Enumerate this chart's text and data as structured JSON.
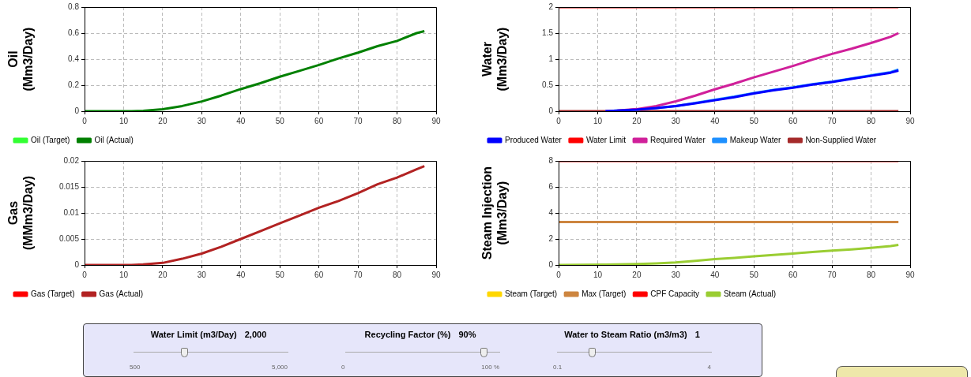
{
  "chart_data": [
    {
      "type": "line",
      "ylabel": "Oil (Mm3/Day)",
      "xlim": [
        0,
        90
      ],
      "xticks": [
        0,
        10,
        20,
        30,
        40,
        50,
        60,
        70,
        80,
        90
      ],
      "ylim": [
        0,
        0.8
      ],
      "yticks": [
        0,
        0.2,
        0.4,
        0.6,
        0.8
      ],
      "grid": true,
      "legend": "bottom",
      "marker": "none",
      "line_style": "solid",
      "series": [
        {
          "name": "Oil (Target)",
          "color": "#33ff33"
        },
        {
          "name": "Oil (Actual)",
          "color": "#008000",
          "x": [
            0,
            10,
            12,
            15,
            20,
            25,
            30,
            35,
            40,
            45,
            50,
            55,
            60,
            65,
            70,
            75,
            80,
            85,
            87
          ],
          "values": [
            0,
            0,
            0,
            0.003,
            0.015,
            0.04,
            0.075,
            0.12,
            0.17,
            0.215,
            0.265,
            0.31,
            0.355,
            0.405,
            0.45,
            0.5,
            0.54,
            0.6,
            0.615
          ]
        }
      ]
    },
    {
      "type": "line",
      "ylabel": "Water (Mm3/Day)",
      "xlim": [
        0,
        90
      ],
      "xticks": [
        0,
        10,
        20,
        30,
        40,
        50,
        60,
        70,
        80,
        90
      ],
      "ylim": [
        0,
        2
      ],
      "yticks": [
        0,
        0.5,
        1,
        1.5,
        2
      ],
      "grid": true,
      "legend": "bottom",
      "marker": "none",
      "line_style": "solid",
      "series": [
        {
          "name": "Produced Water",
          "color": "#0000ff",
          "x": [
            12,
            15,
            20,
            25,
            30,
            35,
            40,
            45,
            50,
            55,
            60,
            65,
            70,
            75,
            80,
            85,
            87
          ],
          "values": [
            0,
            0.01,
            0.03,
            0.06,
            0.1,
            0.15,
            0.21,
            0.27,
            0.34,
            0.4,
            0.45,
            0.51,
            0.56,
            0.62,
            0.68,
            0.74,
            0.78
          ]
        },
        {
          "name": "Water Limit",
          "color": "#ff0000",
          "x": [
            0,
            87
          ],
          "values": [
            2,
            2
          ]
        },
        {
          "name": "Required Water",
          "color": "#d0209a",
          "x": [
            12,
            15,
            20,
            25,
            30,
            35,
            40,
            45,
            50,
            55,
            60,
            65,
            70,
            75,
            80,
            85,
            87
          ],
          "values": [
            0,
            0.01,
            0.04,
            0.1,
            0.19,
            0.3,
            0.42,
            0.53,
            0.65,
            0.76,
            0.87,
            0.99,
            1.1,
            1.2,
            1.31,
            1.43,
            1.5
          ]
        },
        {
          "name": "Makeup Water",
          "color": "#1e90ff",
          "x": [
            12,
            15,
            20,
            25,
            30,
            35,
            40,
            45,
            50,
            55,
            60,
            65,
            70,
            75,
            80,
            85,
            87
          ],
          "values": [
            0,
            0.01,
            0.03,
            0.06,
            0.1,
            0.16,
            0.22,
            0.28,
            0.35,
            0.41,
            0.46,
            0.52,
            0.57,
            0.63,
            0.69,
            0.75,
            0.8
          ]
        },
        {
          "name": "Non-Supplied Water",
          "color": "#a52a2a",
          "x": [
            0,
            87
          ],
          "values": [
            0,
            0
          ]
        }
      ]
    },
    {
      "type": "line",
      "ylabel": "Gas (MMm3/Day)",
      "xlim": [
        0,
        90
      ],
      "xticks": [
        0,
        10,
        20,
        30,
        40,
        50,
        60,
        70,
        80,
        90
      ],
      "ylim": [
        0,
        0.02
      ],
      "yticks": [
        0,
        0.005,
        0.01,
        0.015,
        0.02
      ],
      "grid": true,
      "legend": "bottom",
      "marker": "none",
      "line_style": "solid",
      "series": [
        {
          "name": "Gas (Target)",
          "color": "#ff0000"
        },
        {
          "name": "Gas (Actual)",
          "color": "#b22222",
          "x": [
            0,
            10,
            12,
            15,
            20,
            25,
            30,
            35,
            40,
            45,
            50,
            55,
            60,
            65,
            70,
            75,
            80,
            85,
            87
          ],
          "values": [
            0,
            0,
            0,
            0.0001,
            0.0004,
            0.0012,
            0.0022,
            0.0035,
            0.005,
            0.0065,
            0.008,
            0.0095,
            0.011,
            0.0123,
            0.0138,
            0.0155,
            0.0168,
            0.0184,
            0.019
          ]
        }
      ]
    },
    {
      "type": "line",
      "ylabel": "Steam Injection (Mm3/Day)",
      "xlim": [
        0,
        90
      ],
      "xticks": [
        0,
        10,
        20,
        30,
        40,
        50,
        60,
        70,
        80,
        90
      ],
      "ylim": [
        0,
        8
      ],
      "yticks": [
        0,
        2,
        4,
        6,
        8
      ],
      "grid": true,
      "legend": "bottom",
      "marker": "none",
      "line_style": "solid",
      "series": [
        {
          "name": "Steam (Target)",
          "color": "#ffd700"
        },
        {
          "name": "Max (Target)",
          "color": "#cd853f",
          "x": [
            0,
            87
          ],
          "values": [
            3.3,
            3.3
          ]
        },
        {
          "name": "CPF Capacity",
          "color": "#ff0000",
          "x": [
            0,
            87
          ],
          "values": [
            8,
            8
          ]
        },
        {
          "name": "Steam (Actual)",
          "color": "#9acd32",
          "x": [
            0,
            12,
            20,
            25,
            30,
            35,
            40,
            45,
            50,
            55,
            60,
            65,
            70,
            75,
            80,
            85,
            87
          ],
          "values": [
            0,
            0.03,
            0.07,
            0.12,
            0.2,
            0.32,
            0.45,
            0.55,
            0.67,
            0.78,
            0.88,
            1.0,
            1.1,
            1.2,
            1.32,
            1.45,
            1.55
          ]
        }
      ]
    },
    {
      "type": "other",
      "annotations": [
        "Water Limit (m3/Day)",
        "2,000",
        "500",
        "5,000",
        "Recycling Factor (%)",
        "90%",
        "0",
        "100 %",
        "Water to Steam Ratio (m3/m3)",
        "1",
        "0.1",
        "4"
      ]
    }
  ]
}
